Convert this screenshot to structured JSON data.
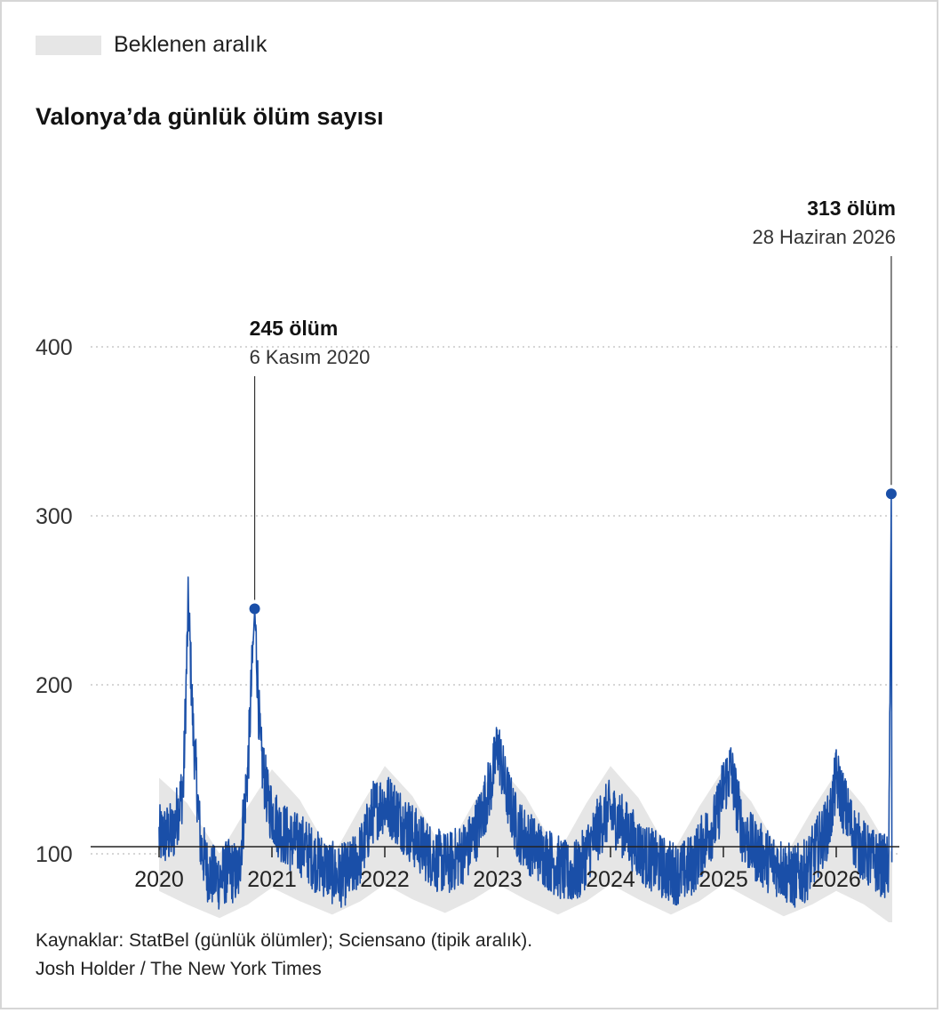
{
  "legend": {
    "label": "Beklenen aralık",
    "swatch_color": "#e6e6e6"
  },
  "source": {
    "line1": "Kaynaklar: StatBel (günlük ölümler); Sciensano (tipik aralık).",
    "line2": "Josh Holder / The New York Times"
  },
  "chart_data": {
    "type": "line",
    "title": "Valonya’da günlük ölüm sayısı",
    "xlabel": "",
    "ylabel": "",
    "ylim": [
      0,
      400
    ],
    "yticks": [
      100,
      200,
      300,
      400
    ],
    "ytick_labels": [
      "100",
      "200",
      "300",
      "400"
    ],
    "xlim": [
      "2020-01-01",
      "2026-07-01"
    ],
    "xticks": [
      "2020",
      "2021",
      "2022",
      "2023",
      "2024",
      "2025",
      "2026"
    ],
    "grid": "horizontal dotted",
    "series": [
      {
        "name": "",
        "color": "#1a4fa8",
        "x": [
          "2020-01-01",
          "2020-02-15",
          "2020-03-20",
          "2020-04-05",
          "2020-04-20",
          "2020-05-15",
          "2020-06-10",
          "2020-07-15",
          "2020-08-10",
          "2020-09-15",
          "2020-10-15",
          "2020-11-06",
          "2020-11-25",
          "2020-12-20",
          "2021-01-25",
          "2021-03-01",
          "2021-04-15",
          "2021-05-20",
          "2021-06-25",
          "2021-08-01",
          "2021-09-15",
          "2021-10-20",
          "2021-11-25",
          "2021-12-25",
          "2022-01-20",
          "2022-02-25",
          "2022-04-05",
          "2022-05-15",
          "2022-06-20",
          "2022-07-25",
          "2022-08-25",
          "2022-09-30",
          "2022-11-05",
          "2022-12-15",
          "2023-01-01",
          "2023-01-25",
          "2023-03-05",
          "2023-04-15",
          "2023-05-25",
          "2023-07-05",
          "2023-08-15",
          "2023-09-20",
          "2023-10-25",
          "2023-12-01",
          "2023-12-25",
          "2024-01-25",
          "2024-03-05",
          "2024-04-15",
          "2024-05-25",
          "2024-07-05",
          "2024-08-15",
          "2024-09-25",
          "2024-11-01",
          "2024-12-10",
          "2025-01-01",
          "2025-01-25",
          "2025-03-05",
          "2025-04-15",
          "2025-05-25",
          "2025-07-05",
          "2025-08-15",
          "2025-09-25",
          "2025-11-01",
          "2025-12-10",
          "2026-01-01",
          "2026-01-25",
          "2026-03-05",
          "2026-04-15",
          "2026-05-20",
          "2026-06-20",
          "2026-06-28",
          "2026-06-30"
        ],
        "values": [
          110,
          112,
          140,
          250,
          175,
          105,
          88,
          85,
          90,
          88,
          150,
          245,
          160,
          130,
          115,
          108,
          104,
          96,
          92,
          86,
          90,
          102,
          125,
          130,
          128,
          120,
          110,
          102,
          96,
          94,
          98,
          104,
          120,
          145,
          165,
          140,
          115,
          106,
          100,
          94,
          88,
          90,
          104,
          118,
          125,
          120,
          110,
          100,
          95,
          90,
          88,
          94,
          108,
          120,
          140,
          150,
          112,
          102,
          96,
          92,
          86,
          90,
          104,
          118,
          145,
          130,
          108,
          98,
          94,
          92,
          313,
          95
        ]
      }
    ],
    "expected_range": {
      "x": [
        "2020-01-01",
        "2020-04-01",
        "2020-07-15",
        "2020-10-15",
        "2021-01-01",
        "2021-04-01",
        "2021-07-15",
        "2021-10-15",
        "2022-01-01",
        "2022-04-01",
        "2022-07-15",
        "2022-10-15",
        "2023-01-01",
        "2023-04-01",
        "2023-07-15",
        "2023-10-15",
        "2024-01-01",
        "2024-04-01",
        "2024-07-15",
        "2024-10-15",
        "2025-01-01",
        "2025-04-01",
        "2025-07-15",
        "2025-10-15",
        "2026-01-01",
        "2026-04-01",
        "2026-07-01"
      ],
      "low": [
        78,
        70,
        62,
        70,
        80,
        72,
        64,
        72,
        82,
        73,
        65,
        73,
        82,
        73,
        64,
        72,
        82,
        73,
        64,
        72,
        82,
        73,
        63,
        70,
        78,
        70,
        58
      ],
      "high": [
        145,
        130,
        100,
        128,
        150,
        132,
        98,
        128,
        152,
        134,
        100,
        130,
        153,
        134,
        100,
        130,
        152,
        133,
        99,
        128,
        150,
        131,
        97,
        126,
        148,
        128,
        100
      ]
    },
    "annotations": [
      {
        "value": "245 ölüm",
        "date": "6 Kasım 2020",
        "x": "2020-11-06",
        "y": 245
      },
      {
        "value": "313 ölüm",
        "date": "28 Haziran 2026",
        "x": "2026-06-28",
        "y": 313
      }
    ]
  }
}
